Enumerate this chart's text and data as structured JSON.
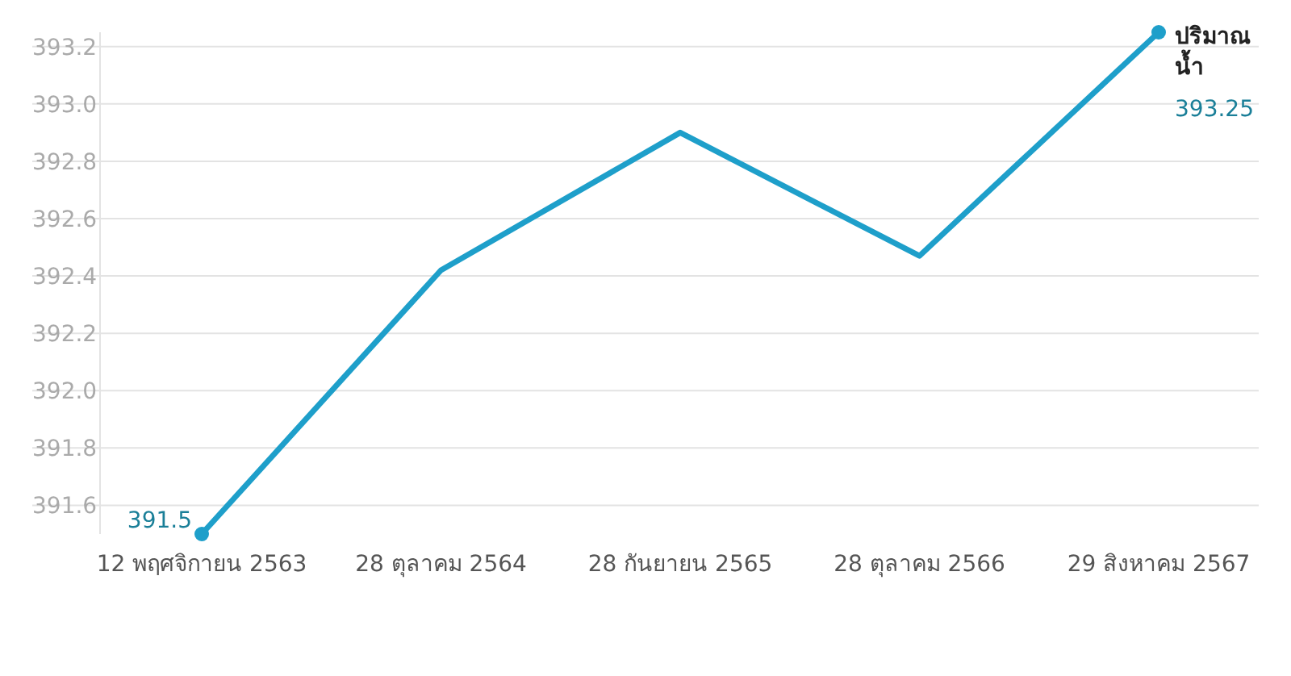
{
  "chart_data": {
    "type": "line",
    "categories": [
      "12 พฤศจิกายน 2563",
      "28 ตุลาคม 2564",
      "28 กันยายน 2565",
      "28 ตุลาคม 2566",
      "29 สิงหาคม 2567"
    ],
    "series": [
      {
        "name": "ปริมาณน้ำ",
        "color": "#1e9fca",
        "values": [
          391.5,
          392.42,
          392.9,
          392.47,
          393.25
        ],
        "value_labels": [
          "391.5",
          null,
          null,
          null,
          "393.25"
        ]
      }
    ],
    "ylim": [
      391.5,
      393.25
    ],
    "yticks": [
      391.6,
      391.8,
      {
        "value": 392,
        "label": "392.0"
      },
      392.2,
      392.4,
      392.6,
      392.8,
      {
        "value": 393,
        "label": "393.0"
      },
      393.2
    ],
    "grid": "y",
    "line_style": "solid"
  }
}
